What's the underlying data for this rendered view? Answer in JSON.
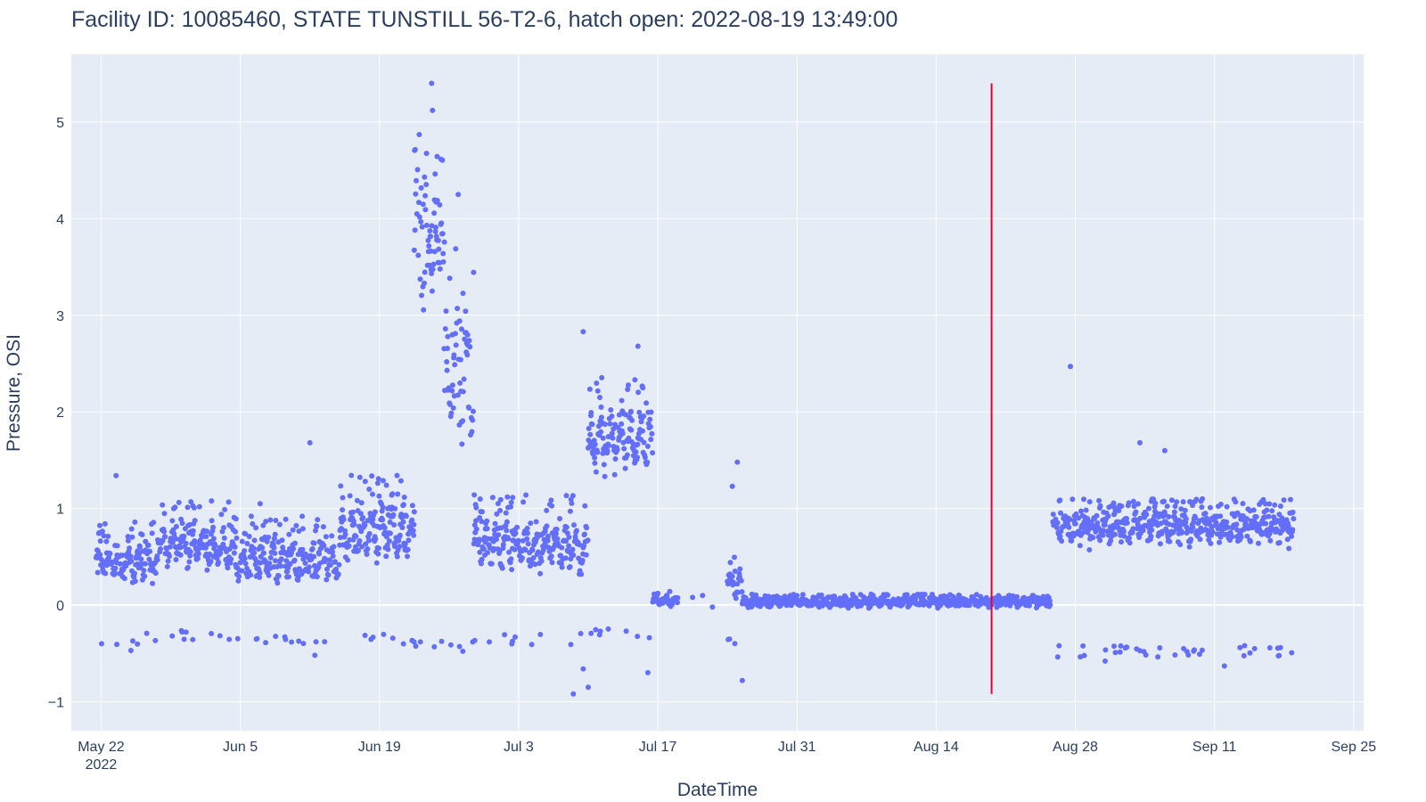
{
  "chart_data": {
    "type": "scatter",
    "title": "Facility ID: 10085460, STATE TUNSTILL 56-T2-6, hatch open: 2022-08-19 13:49:00",
    "xlabel": "DateTime",
    "ylabel": "Pressure, OSI",
    "xlim": [
      "2022-05-19",
      "2022-09-26"
    ],
    "ylim": [
      -1.3,
      5.7
    ],
    "x_ticks": [
      {
        "date": "2022-05-22",
        "label": "May 22",
        "sublabel": "2022"
      },
      {
        "date": "2022-06-05",
        "label": "Jun 5"
      },
      {
        "date": "2022-06-19",
        "label": "Jun 19"
      },
      {
        "date": "2022-07-03",
        "label": "Jul 3"
      },
      {
        "date": "2022-07-17",
        "label": "Jul 17"
      },
      {
        "date": "2022-07-31",
        "label": "Jul 31"
      },
      {
        "date": "2022-08-14",
        "label": "Aug 14"
      },
      {
        "date": "2022-08-28",
        "label": "Aug 28"
      },
      {
        "date": "2022-09-11",
        "label": "Sep 11"
      },
      {
        "date": "2022-09-25",
        "label": "Sep 25"
      }
    ],
    "y_ticks": [
      {
        "value": -1,
        "label": "−1"
      },
      {
        "value": 0,
        "label": "0"
      },
      {
        "value": 1,
        "label": "1"
      },
      {
        "value": 2,
        "label": "2"
      },
      {
        "value": 3,
        "label": "3"
      },
      {
        "value": 4,
        "label": "4"
      },
      {
        "value": 5,
        "label": "5"
      }
    ],
    "grid": true,
    "series": [
      {
        "name": "pressure",
        "color": "#636efa",
        "segments": [
          {
            "start": "2022-05-21T12:00",
            "end": "2022-05-28T00:00",
            "base": 0.45,
            "amp": 0.35,
            "dense_spread": 0.25,
            "low_floor": -0.35
          },
          {
            "start": "2022-05-28T00:00",
            "end": "2022-06-04T00:00",
            "base": 0.6,
            "amp": 0.4,
            "dense_spread": 0.25,
            "low_floor": -0.3
          },
          {
            "start": "2022-06-04T00:00",
            "end": "2022-06-15T00:00",
            "base": 0.45,
            "amp": 0.4,
            "dense_spread": 0.2,
            "low_floor": -0.35
          },
          {
            "start": "2022-06-15T00:00",
            "end": "2022-06-22T12:00",
            "base": 0.75,
            "amp": 0.5,
            "dense_spread": 0.25,
            "low_floor": -0.35
          },
          {
            "start": "2022-06-22T12:00",
            "end": "2022-06-25T12:00",
            "base": 3.8,
            "amp": 0.9,
            "dense_spread": 1.1,
            "low_floor": -0.38
          },
          {
            "start": "2022-06-25T12:00",
            "end": "2022-06-28T12:00",
            "base": 2.4,
            "amp": 1.2,
            "dense_spread": 1.0,
            "low_floor": -0.42
          },
          {
            "start": "2022-06-28T12:00",
            "end": "2022-07-10T00:00",
            "base": 0.6,
            "amp": 0.45,
            "dense_spread": 0.3,
            "low_floor": -0.35
          },
          {
            "start": "2022-07-10T00:00",
            "end": "2022-07-16T12:00",
            "base": 1.7,
            "amp": 0.55,
            "dense_spread": 0.4,
            "low_floor": -0.3
          },
          {
            "start": "2022-07-16T12:00",
            "end": "2022-07-19T00:00",
            "base": 0.05,
            "amp": 0.08,
            "dense_spread": 0.08,
            "low_floor": null
          },
          {
            "start": "2022-07-24T00:00",
            "end": "2022-07-25T12:00",
            "base": 0.2,
            "amp": 0.25,
            "dense_spread": 0.2,
            "low_floor": -0.4
          },
          {
            "start": "2022-07-25T12:00",
            "end": "2022-08-25T12:00",
            "base": 0.03,
            "amp": 0.07,
            "dense_spread": 0.08,
            "low_floor": null
          },
          {
            "start": "2022-08-25T18:00",
            "end": "2022-09-19T00:00",
            "base": 0.8,
            "amp": 0.25,
            "dense_spread": 0.2,
            "low_floor": -0.48
          }
        ],
        "outliers": [
          {
            "date": "2022-06-24T06:00",
            "value": 5.4
          },
          {
            "date": "2022-06-24T08:00",
            "value": 5.12
          },
          {
            "date": "2022-06-23T00:00",
            "value": 4.87
          },
          {
            "date": "2022-06-26T22:00",
            "value": 4.25
          },
          {
            "date": "2022-07-09T12:00",
            "value": 2.83
          },
          {
            "date": "2022-07-15T00:00",
            "value": 2.68
          },
          {
            "date": "2022-08-27T12:00",
            "value": 2.47
          },
          {
            "date": "2022-09-03T12:00",
            "value": 1.68
          },
          {
            "date": "2022-09-06T00:00",
            "value": 1.6
          },
          {
            "date": "2022-07-25T00:00",
            "value": 1.48
          },
          {
            "date": "2022-07-24T12:00",
            "value": 1.23
          },
          {
            "date": "2022-06-12T00:00",
            "value": 1.68
          },
          {
            "date": "2022-05-23T12:00",
            "value": 1.34
          },
          {
            "date": "2022-06-07T00:00",
            "value": 1.05
          },
          {
            "date": "2022-07-08T12:00",
            "value": -0.92
          },
          {
            "date": "2022-07-10T00:00",
            "value": -0.85
          },
          {
            "date": "2022-07-09T12:00",
            "value": -0.66
          },
          {
            "date": "2022-07-25T12:00",
            "value": -0.78
          },
          {
            "date": "2022-07-16T00:00",
            "value": -0.7
          },
          {
            "date": "2022-06-12T12:00",
            "value": -0.52
          },
          {
            "date": "2022-05-25T00:00",
            "value": -0.47
          },
          {
            "date": "2022-09-12T00:00",
            "value": -0.63
          },
          {
            "date": "2022-08-31T00:00",
            "value": -0.58
          },
          {
            "date": "2022-07-21T12:00",
            "value": 0.1
          },
          {
            "date": "2022-07-22T12:00",
            "value": -0.02
          },
          {
            "date": "2022-07-20T12:00",
            "value": 0.08
          }
        ]
      }
    ],
    "annotations": [
      {
        "type": "vline",
        "date": "2022-08-19T13:49",
        "y0": -0.92,
        "y1": 5.4,
        "color": "#e8002a"
      }
    ]
  }
}
